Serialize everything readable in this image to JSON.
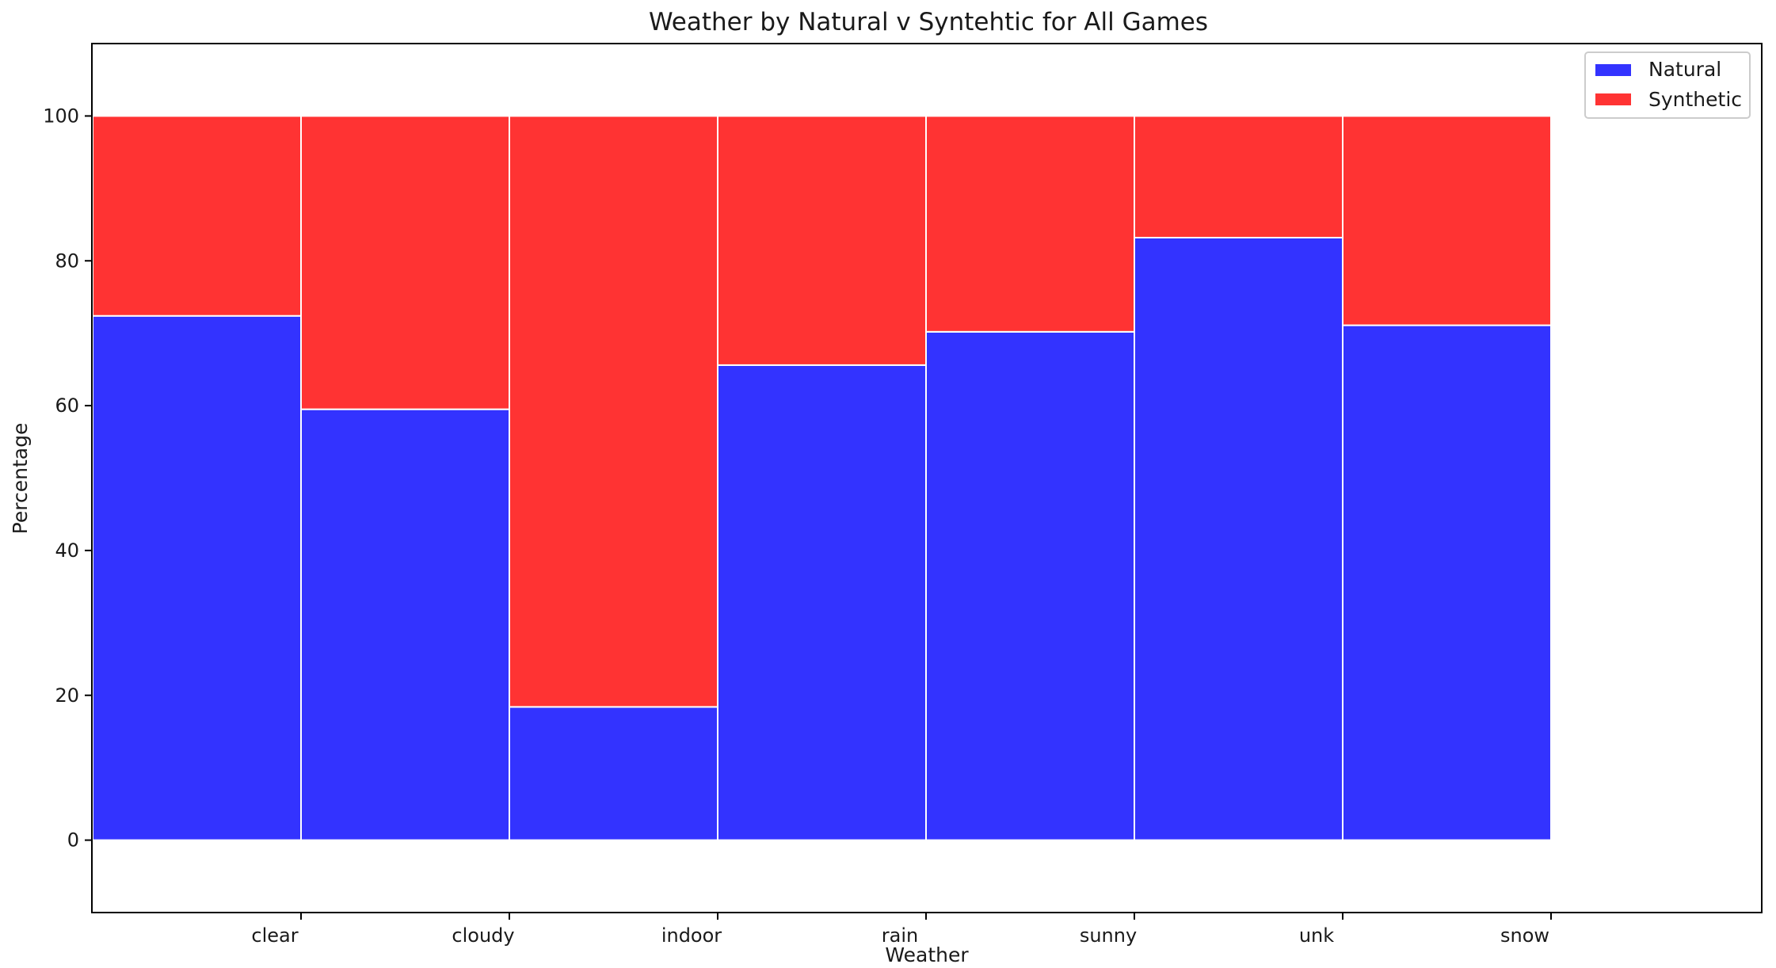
{
  "chart_data": {
    "type": "bar",
    "stacked": true,
    "title": "Weather by Natural v Syntehtic for All Games",
    "xlabel": "Weather",
    "ylabel": "Percentage",
    "categories": [
      "clear",
      "cloudy",
      "indoor",
      "rain",
      "sunny",
      "unk",
      "snow"
    ],
    "series": [
      {
        "name": "Natural",
        "color": "#3333ff",
        "values": [
          72.4,
          59.5,
          18.4,
          65.6,
          70.2,
          83.2,
          71.1
        ]
      },
      {
        "name": "Synthetic",
        "color": "#ff3333",
        "values": [
          27.6,
          40.5,
          81.6,
          34.4,
          29.8,
          16.8,
          28.9
        ]
      }
    ],
    "ylim": [
      -10,
      110
    ],
    "yticks": [
      0,
      20,
      40,
      60,
      80,
      100
    ],
    "grid": false,
    "legend_position": "top-right"
  }
}
